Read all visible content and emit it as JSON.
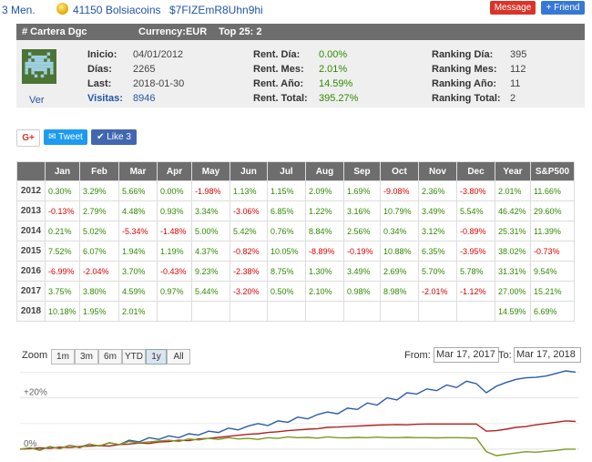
{
  "topbar": {
    "months": "3 Men.",
    "coins": "41150 Bolsiacoins",
    "ticker": "$7FIZEmR8Uhn9hi",
    "message_button": "Message",
    "friend_button": "+ Friend"
  },
  "portfolio": {
    "title": "# Cartera Dgc",
    "currency": "Currency:EUR",
    "top": "Top 25: 2",
    "avatar_link": "Ver",
    "fields": [
      {
        "label": "Inicio:",
        "value": "04/01/2012"
      },
      {
        "label": "Días:",
        "value": "2265"
      },
      {
        "label": "Last:",
        "value": "2018-01-30"
      },
      {
        "label": "Visitas:",
        "value": "8946"
      }
    ],
    "rent": [
      {
        "label": "Rent. Día:",
        "value": "0.00%"
      },
      {
        "label": "Rent. Mes:",
        "value": "2.01%"
      },
      {
        "label": "Rent. Año:",
        "value": "14.59%"
      },
      {
        "label": "Rent. Total:",
        "value": "395.27%"
      }
    ],
    "ranking": [
      {
        "label": "Ranking Día:",
        "value": "395"
      },
      {
        "label": "Ranking Mes:",
        "value": "112"
      },
      {
        "label": "Ranking Año:",
        "value": "11"
      },
      {
        "label": "Ranking Total:",
        "value": "2"
      }
    ]
  },
  "social": {
    "gplus": "G+",
    "tweet": "Tweet",
    "like": "Like 3"
  },
  "returns_table": {
    "headers": [
      "",
      "Jan",
      "Feb",
      "Mar",
      "Apr",
      "May",
      "Jun",
      "Jul",
      "Aug",
      "Sep",
      "Oct",
      "Nov",
      "Dec",
      "Year",
      "S&P500"
    ],
    "rows": [
      [
        "2012",
        "0.30%",
        "3.29%",
        "5.66%",
        "0.00%",
        "-1.98%",
        "1.13%",
        "1.15%",
        "2.09%",
        "1.69%",
        "-9.08%",
        "2.36%",
        "-3.80%",
        "2.01%",
        "11.66%"
      ],
      [
        "2013",
        "-0.13%",
        "2.79%",
        "4.48%",
        "0.93%",
        "3.34%",
        "-3.06%",
        "6.85%",
        "1.22%",
        "3.16%",
        "10.79%",
        "3.49%",
        "5.54%",
        "46.42%",
        "29.60%"
      ],
      [
        "2014",
        "0.21%",
        "5.02%",
        "-5.34%",
        "-1.48%",
        "5.00%",
        "5.42%",
        "0.76%",
        "8.84%",
        "2.56%",
        "0.34%",
        "3.12%",
        "-0.89%",
        "25.31%",
        "11.39%"
      ],
      [
        "2015",
        "7.52%",
        "6.07%",
        "1.94%",
        "1.19%",
        "4.37%",
        "-0.82%",
        "10.05%",
        "-8.89%",
        "-0.19%",
        "10.88%",
        "6.35%",
        "-3.95%",
        "38.02%",
        "-0.73%"
      ],
      [
        "2016",
        "-6.99%",
        "-2.04%",
        "3.70%",
        "-0.43%",
        "9.23%",
        "-2.38%",
        "8.75%",
        "1.30%",
        "3.49%",
        "2.69%",
        "5.70%",
        "5.78%",
        "31.31%",
        "9.54%"
      ],
      [
        "2017",
        "3.75%",
        "3.80%",
        "4.59%",
        "0.97%",
        "5.44%",
        "-3.20%",
        "0.50%",
        "2.10%",
        "0.98%",
        "8.98%",
        "-2.01%",
        "-1.12%",
        "27.00%",
        "15.21%"
      ],
      [
        "2018",
        "10.18%",
        "1.95%",
        "2.01%",
        "",
        "",
        "",
        "",
        "",
        "",
        "",
        "",
        "",
        "14.59%",
        "6.69%"
      ]
    ]
  },
  "chart_controls": {
    "zoom_label": "Zoom",
    "zoom_buttons": [
      "1m",
      "3m",
      "6m",
      "YTD",
      "1y",
      "All"
    ],
    "selected": "1y",
    "from_label": "From:",
    "from_value": "Mar 17, 2017",
    "to_label": "To:",
    "to_value": "Mar 17, 2018"
  },
  "chart_data": {
    "type": "line",
    "y_tick_labels": [
      "+20%",
      "0%"
    ],
    "ylim": [
      -5,
      33
    ],
    "grid": true,
    "series": [
      {
        "color": "#2a5caa",
        "values": [
          0,
          0.5,
          -0.3,
          1,
          0.2,
          1.5,
          0.8,
          2,
          1.2,
          2.5,
          1.8,
          3.5,
          2.8,
          4.5,
          3.8,
          5.2,
          4.5,
          6,
          5.5,
          7,
          6.5,
          8.2,
          7.5,
          9,
          10,
          9.2,
          11,
          10.5,
          12.5,
          11.8,
          13.5,
          14.5,
          13.8,
          16,
          15.5,
          18,
          17.2,
          20,
          19.2,
          22,
          21.5,
          23.5,
          22.8,
          25,
          24,
          26.5,
          25.5,
          22,
          24.5,
          26,
          27.2,
          27.8,
          28,
          28.5,
          29.5,
          30.5,
          30
        ]
      },
      {
        "color": "#b52020",
        "values": [
          0,
          0.2,
          0.5,
          0.3,
          0.8,
          0.6,
          1,
          1.2,
          1.4,
          1.2,
          1.8,
          2,
          2.4,
          2.2,
          2.8,
          3,
          3.5,
          3.3,
          4,
          4.2,
          4.6,
          5,
          5.4,
          5.8,
          6,
          6.5,
          6.8,
          7.2,
          7.5,
          7.8,
          8,
          8.5,
          8.6,
          8.8,
          9,
          9.2,
          9.4,
          9.5,
          9.6,
          9.5,
          9.7,
          9.8,
          9.8,
          9.8,
          9.8,
          9.8,
          9.8,
          7,
          7.2,
          7.8,
          8.5,
          8.8,
          9.5,
          10,
          10.5,
          11,
          10.8
        ]
      },
      {
        "color": "#7a9a20",
        "values": [
          0,
          0.5,
          -0.5,
          1,
          0.2,
          1.5,
          0.5,
          2,
          1.2,
          2.5,
          1.8,
          3,
          2.5,
          2.8,
          3.2,
          3.5,
          3,
          4,
          3.6,
          4.2,
          3.8,
          4.5,
          4,
          4.2,
          3.8,
          4.5,
          4.2,
          4.8,
          4.5,
          4.6,
          4.3,
          4.8,
          4.5,
          4.4,
          4.6,
          4.5,
          4.7,
          4.5,
          4.5,
          4.6,
          4.5,
          4.5,
          4.4,
          4.5,
          4.5,
          4.4,
          4.3,
          -1,
          -2.5,
          -2,
          -1.5,
          -1,
          -1.2,
          -0.8,
          -0.5,
          0,
          0
        ]
      }
    ]
  }
}
